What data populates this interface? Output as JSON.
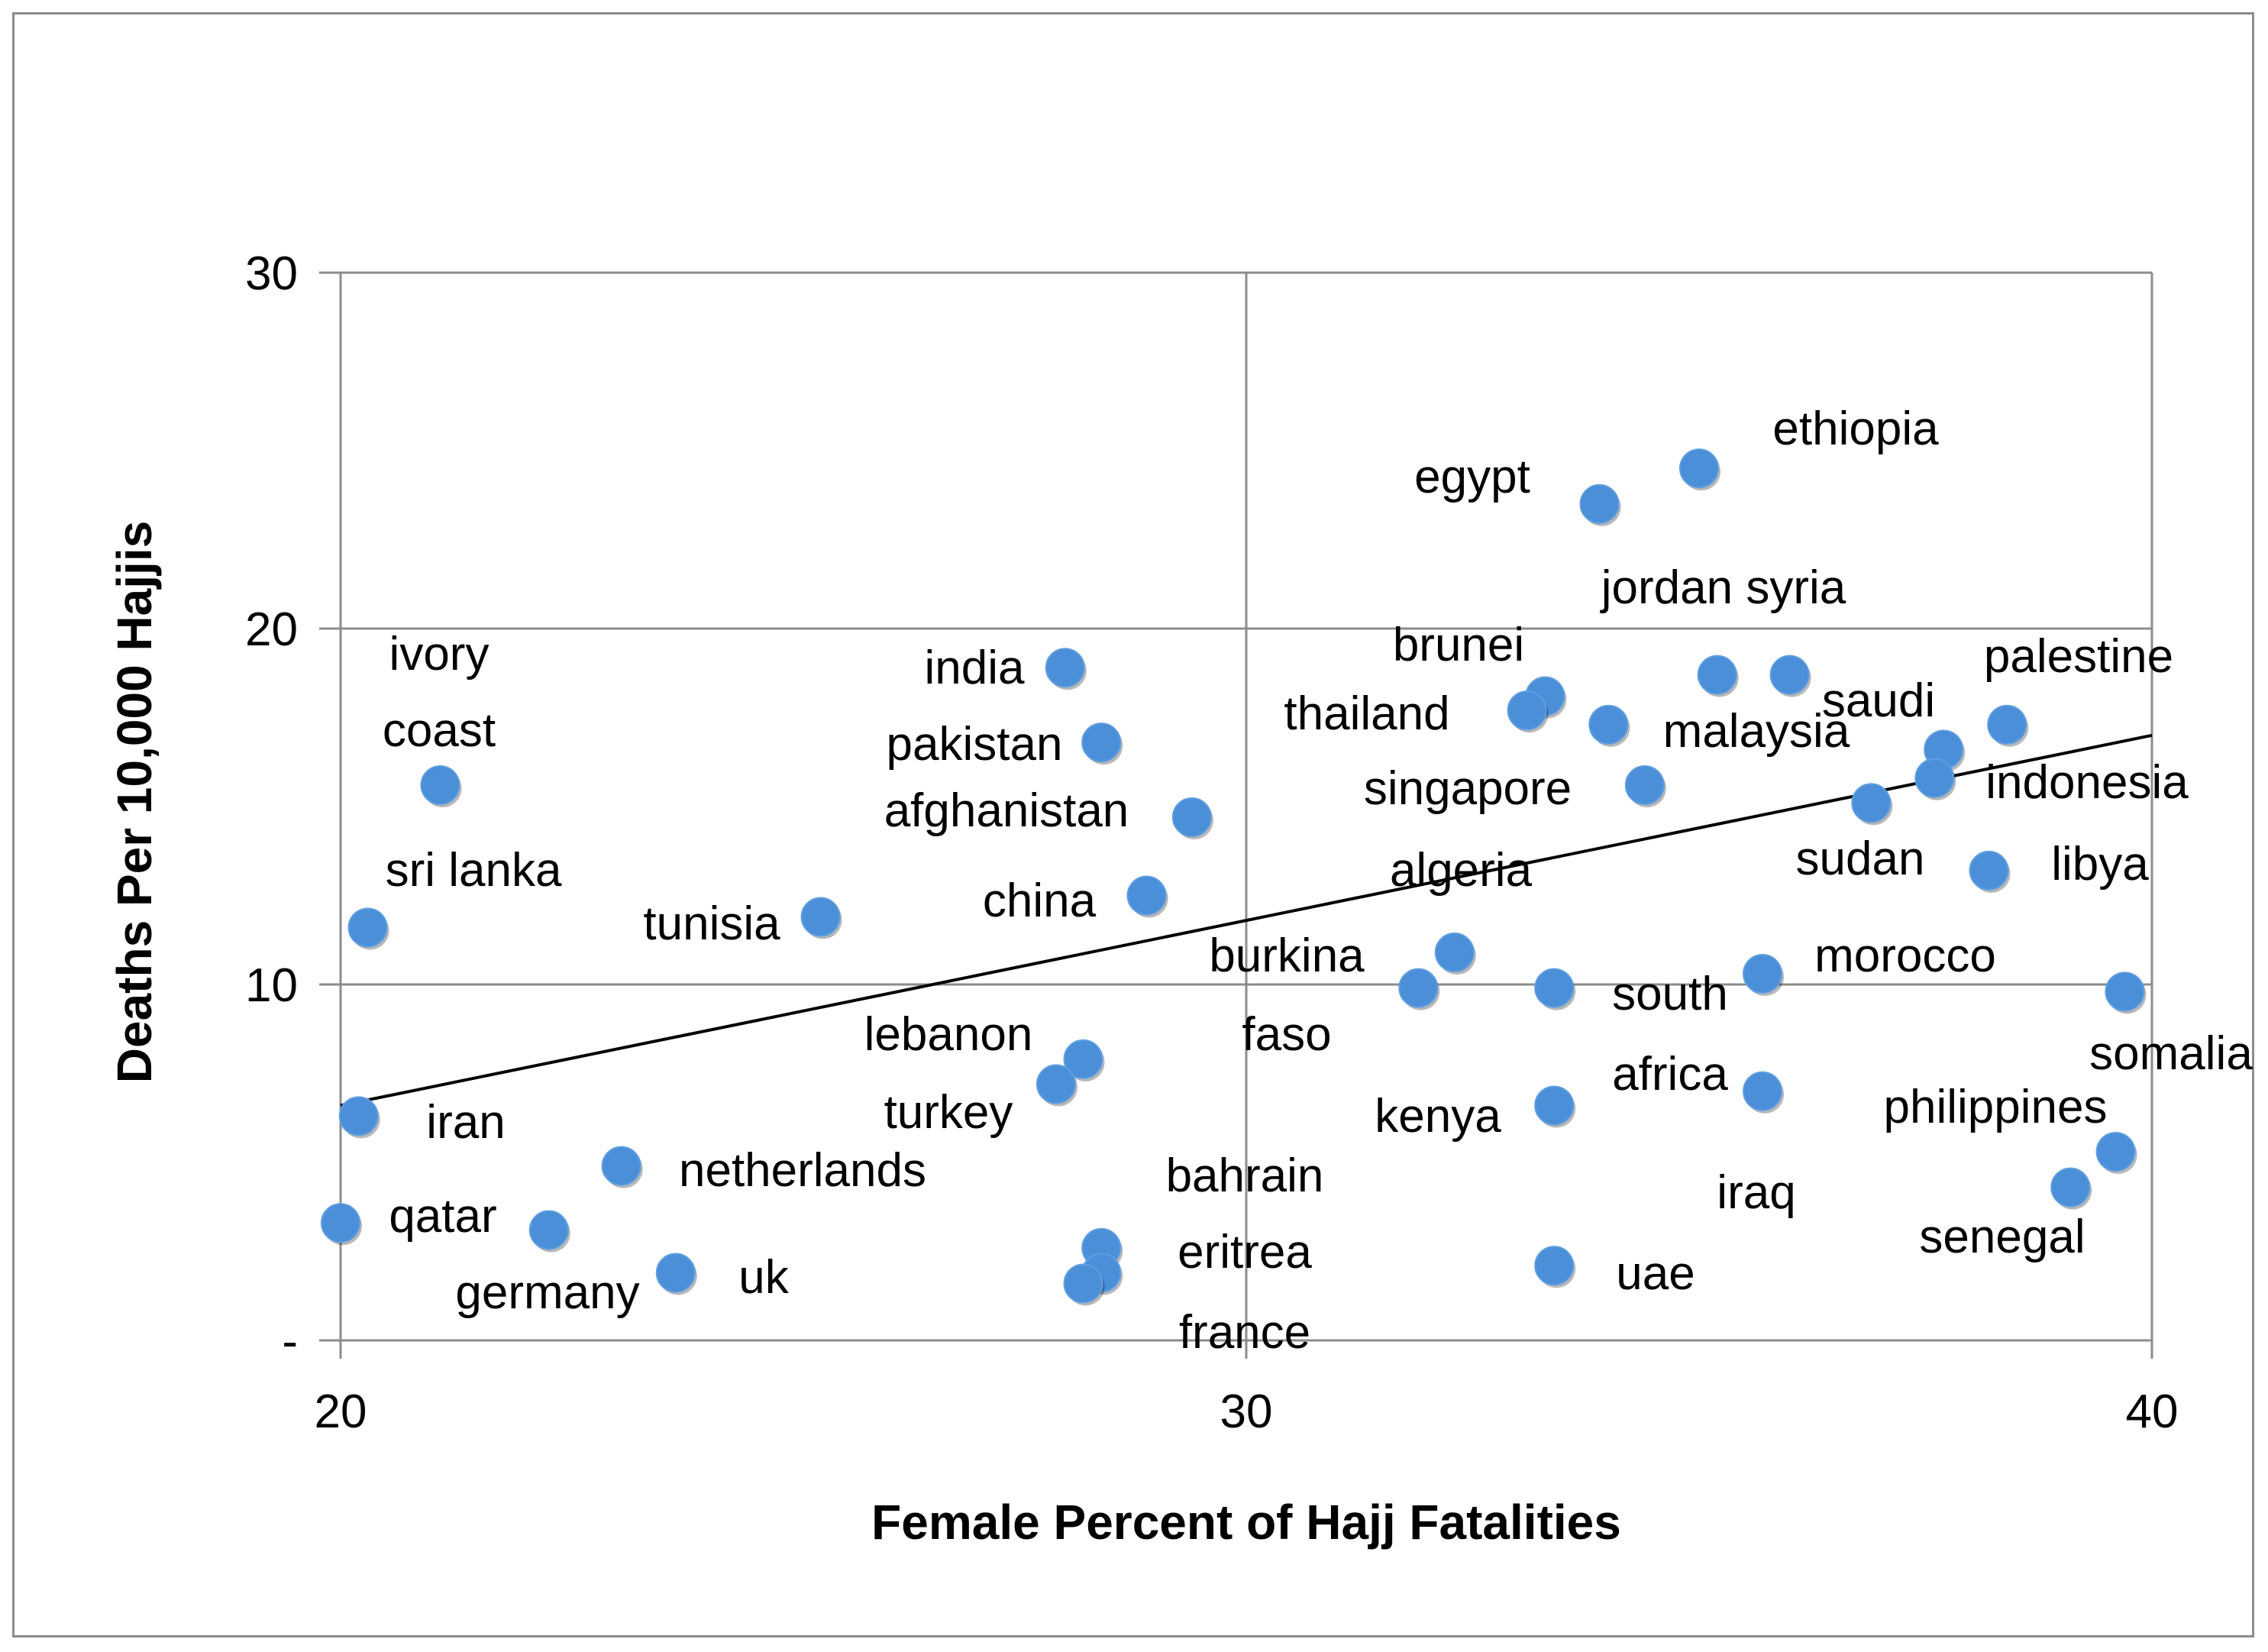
{
  "chart_data": {
    "type": "scatter",
    "title": "",
    "xlabel": "Female Percent of Hajj Fatalities",
    "ylabel": "Deaths Per 10,000 Hajjis",
    "xlim": [
      20,
      40
    ],
    "ylim": [
      0,
      30
    ],
    "x_ticks": [
      {
        "value": 20,
        "label": "20"
      },
      {
        "value": 30,
        "label": "30"
      },
      {
        "value": 40,
        "label": "40"
      }
    ],
    "y_ticks": [
      {
        "value": 0,
        "label": "-"
      },
      {
        "value": 10,
        "label": "10"
      },
      {
        "value": 20,
        "label": "20"
      },
      {
        "value": 30,
        "label": "30"
      }
    ],
    "grid": true,
    "marker_color": "#4a8fd8",
    "trendline": {
      "x": [
        20,
        40
      ],
      "y": [
        6.6,
        17.0
      ],
      "color": "#000000"
    },
    "points": [
      {
        "country": "ivory coast",
        "x": 21.1,
        "y": 15.6
      },
      {
        "country": "sri lanka",
        "x": 20.3,
        "y": 11.6
      },
      {
        "country": "iran",
        "x": 20.2,
        "y": 6.3
      },
      {
        "country": "qatar",
        "x": 20.0,
        "y": 3.3
      },
      {
        "country": "germany",
        "x": 22.3,
        "y": 3.1
      },
      {
        "country": "netherlands",
        "x": 23.1,
        "y": 4.9
      },
      {
        "country": "uk",
        "x": 23.7,
        "y": 1.9
      },
      {
        "country": "tunisia",
        "x": 25.3,
        "y": 11.9
      },
      {
        "country": "india",
        "x": 28.0,
        "y": 18.9
      },
      {
        "country": "pakistan",
        "x": 28.4,
        "y": 16.8
      },
      {
        "country": "afghanistan",
        "x": 29.4,
        "y": 14.7
      },
      {
        "country": "china",
        "x": 28.9,
        "y": 12.5
      },
      {
        "country": "lebanon",
        "x": 28.2,
        "y": 7.9
      },
      {
        "country": "turkey",
        "x": 27.9,
        "y": 7.2
      },
      {
        "country": "bahrain",
        "x": 28.4,
        "y": 2.6
      },
      {
        "country": "eritrea",
        "x": 28.4,
        "y": 1.9
      },
      {
        "country": "france",
        "x": 28.2,
        "y": 1.6
      },
      {
        "country": "egypt",
        "x": 33.9,
        "y": 23.5
      },
      {
        "country": "ethiopia",
        "x": 35.0,
        "y": 24.5
      },
      {
        "country": "brunei",
        "x": 33.3,
        "y": 18.1
      },
      {
        "country": "thailand",
        "x": 33.1,
        "y": 17.7
      },
      {
        "country": "jordan",
        "x": 35.2,
        "y": 18.7
      },
      {
        "country": "syria",
        "x": 36.0,
        "y": 18.7
      },
      {
        "country": "malaysia",
        "x": 34.0,
        "y": 17.3
      },
      {
        "country": "singapore",
        "x": 34.4,
        "y": 15.6
      },
      {
        "country": "algeria",
        "x": 32.3,
        "y": 10.9
      },
      {
        "country": "burkina faso",
        "x": 31.9,
        "y": 9.9
      },
      {
        "country": "south africa",
        "x": 33.4,
        "y": 9.9
      },
      {
        "country": "kenya",
        "x": 33.4,
        "y": 6.6
      },
      {
        "country": "uae",
        "x": 33.4,
        "y": 2.1
      },
      {
        "country": "morocco",
        "x": 35.7,
        "y": 10.3
      },
      {
        "country": "iraq",
        "x": 35.7,
        "y": 7.0
      },
      {
        "country": "saudi",
        "x": 37.7,
        "y": 16.6
      },
      {
        "country": "palestine",
        "x": 38.4,
        "y": 17.3
      },
      {
        "country": "indonesia",
        "x": 37.6,
        "y": 15.8
      },
      {
        "country": "sudan",
        "x": 36.9,
        "y": 15.1
      },
      {
        "country": "libya",
        "x": 38.2,
        "y": 13.2
      },
      {
        "country": "somalia",
        "x": 39.7,
        "y": 9.8
      },
      {
        "country": "philippines",
        "x": 39.6,
        "y": 5.3
      },
      {
        "country": "senegal",
        "x": 39.1,
        "y": 4.3
      }
    ],
    "labels": [
      {
        "text": "ivory"
      },
      {
        "text": "coast"
      },
      {
        "text": "sri lanka"
      },
      {
        "text": "iran"
      },
      {
        "text": "qatar"
      },
      {
        "text": "germany"
      },
      {
        "text": "netherlands"
      },
      {
        "text": "uk"
      },
      {
        "text": "tunisia"
      },
      {
        "text": "india"
      },
      {
        "text": "pakistan"
      },
      {
        "text": "afghanistan"
      },
      {
        "text": "china"
      },
      {
        "text": "lebanon"
      },
      {
        "text": "turkey"
      },
      {
        "text": "bahrain"
      },
      {
        "text": "eritrea"
      },
      {
        "text": "france"
      },
      {
        "text": "egypt"
      },
      {
        "text": "ethiopia"
      },
      {
        "text": "brunei"
      },
      {
        "text": "thailand"
      },
      {
        "text": "jordan syria"
      },
      {
        "text": "malaysia"
      },
      {
        "text": "singapore"
      },
      {
        "text": "algeria"
      },
      {
        "text": "burkina"
      },
      {
        "text": "faso"
      },
      {
        "text": "south"
      },
      {
        "text": "africa"
      },
      {
        "text": "kenya"
      },
      {
        "text": "uae"
      },
      {
        "text": "morocco"
      },
      {
        "text": "iraq"
      },
      {
        "text": "saudi"
      },
      {
        "text": "palestine"
      },
      {
        "text": "indonesia"
      },
      {
        "text": "sudan"
      },
      {
        "text": "libya"
      },
      {
        "text": "somalia"
      },
      {
        "text": "philippines"
      },
      {
        "text": "senegal"
      }
    ]
  }
}
